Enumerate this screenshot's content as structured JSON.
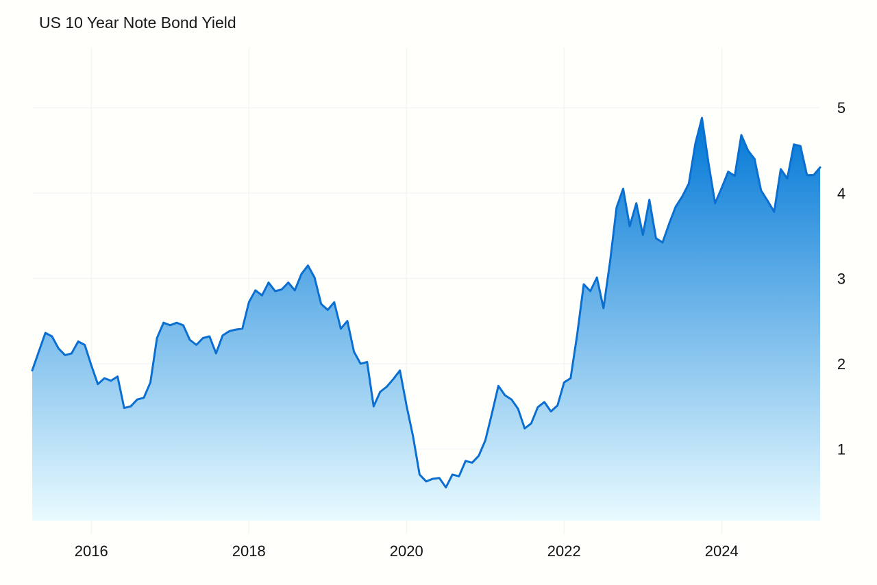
{
  "title": "US 10 Year Note Bond Yield",
  "colors": {
    "line": "#0a6fd0",
    "area_top": "#0077d6",
    "area_bottom": "#e9fbff",
    "grid": "#eef2f4",
    "background": "#fffffb"
  },
  "chart_data": {
    "type": "area",
    "title": "US 10 Year Note Bond Yield",
    "xlabel": "",
    "ylabel": "",
    "x_ticks": [
      "2016",
      "2018",
      "2020",
      "2022",
      "2024"
    ],
    "y_ticks": [
      1,
      2,
      3,
      4,
      5
    ],
    "xlim": [
      "2015-04",
      "2025-04"
    ],
    "ylim": [
      0.0,
      5.7
    ],
    "grid": true,
    "y_axis_position": "right",
    "x": [
      "2015-04",
      "2015-05",
      "2015-06",
      "2015-07",
      "2015-08",
      "2015-09",
      "2015-10",
      "2015-11",
      "2015-12",
      "2016-01",
      "2016-02",
      "2016-03",
      "2016-04",
      "2016-05",
      "2016-06",
      "2016-07",
      "2016-08",
      "2016-09",
      "2016-10",
      "2016-11",
      "2016-12",
      "2017-01",
      "2017-02",
      "2017-03",
      "2017-04",
      "2017-05",
      "2017-06",
      "2017-07",
      "2017-08",
      "2017-09",
      "2017-10",
      "2017-11",
      "2017-12",
      "2018-01",
      "2018-02",
      "2018-03",
      "2018-04",
      "2018-05",
      "2018-06",
      "2018-07",
      "2018-08",
      "2018-09",
      "2018-10",
      "2018-11",
      "2018-12",
      "2019-01",
      "2019-02",
      "2019-03",
      "2019-04",
      "2019-05",
      "2019-06",
      "2019-07",
      "2019-08",
      "2019-09",
      "2019-10",
      "2019-11",
      "2019-12",
      "2020-01",
      "2020-02",
      "2020-03",
      "2020-04",
      "2020-05",
      "2020-06",
      "2020-07",
      "2020-08",
      "2020-09",
      "2020-10",
      "2020-11",
      "2020-12",
      "2021-01",
      "2021-02",
      "2021-03",
      "2021-04",
      "2021-05",
      "2021-06",
      "2021-07",
      "2021-08",
      "2021-09",
      "2021-10",
      "2021-11",
      "2021-12",
      "2022-01",
      "2022-02",
      "2022-03",
      "2022-04",
      "2022-05",
      "2022-06",
      "2022-07",
      "2022-08",
      "2022-09",
      "2022-10",
      "2022-11",
      "2022-12",
      "2023-01",
      "2023-02",
      "2023-03",
      "2023-04",
      "2023-05",
      "2023-06",
      "2023-07",
      "2023-08",
      "2023-09",
      "2023-10",
      "2023-11",
      "2023-12",
      "2024-01",
      "2024-02",
      "2024-03",
      "2024-04",
      "2024-05",
      "2024-06",
      "2024-07",
      "2024-08",
      "2024-09",
      "2024-10",
      "2024-11",
      "2024-12",
      "2025-01",
      "2025-02",
      "2025-03",
      "2025-04"
    ],
    "series": [
      {
        "values": [
          1.92,
          2.14,
          2.36,
          2.32,
          2.18,
          2.1,
          2.12,
          2.26,
          2.22,
          1.98,
          1.76,
          1.83,
          1.8,
          1.85,
          1.48,
          1.5,
          1.58,
          1.6,
          1.78,
          2.3,
          2.48,
          2.45,
          2.48,
          2.45,
          2.28,
          2.22,
          2.3,
          2.32,
          2.12,
          2.33,
          2.38,
          2.4,
          2.41,
          2.72,
          2.86,
          2.8,
          2.95,
          2.85,
          2.87,
          2.95,
          2.86,
          3.05,
          3.15,
          3.01,
          2.7,
          2.63,
          2.72,
          2.41,
          2.5,
          2.14,
          2.0,
          2.02,
          1.5,
          1.67,
          1.73,
          1.82,
          1.92,
          1.51,
          1.15,
          0.7,
          0.62,
          0.65,
          0.66,
          0.55,
          0.7,
          0.68,
          0.86,
          0.84,
          0.92,
          1.1,
          1.41,
          1.74,
          1.63,
          1.58,
          1.47,
          1.24,
          1.3,
          1.49,
          1.55,
          1.44,
          1.51,
          1.78,
          1.83,
          2.34,
          2.93,
          2.85,
          3.01,
          2.65,
          3.19,
          3.83,
          4.05,
          3.61,
          3.88,
          3.51,
          3.92,
          3.47,
          3.42,
          3.64,
          3.84,
          3.96,
          4.11,
          4.58,
          4.88,
          4.35,
          3.88,
          4.06,
          4.25,
          4.2,
          4.68,
          4.5,
          4.4,
          4.03,
          3.91,
          3.78,
          4.28,
          4.17,
          4.57,
          4.55,
          4.21,
          4.21,
          4.3
        ]
      }
    ]
  }
}
